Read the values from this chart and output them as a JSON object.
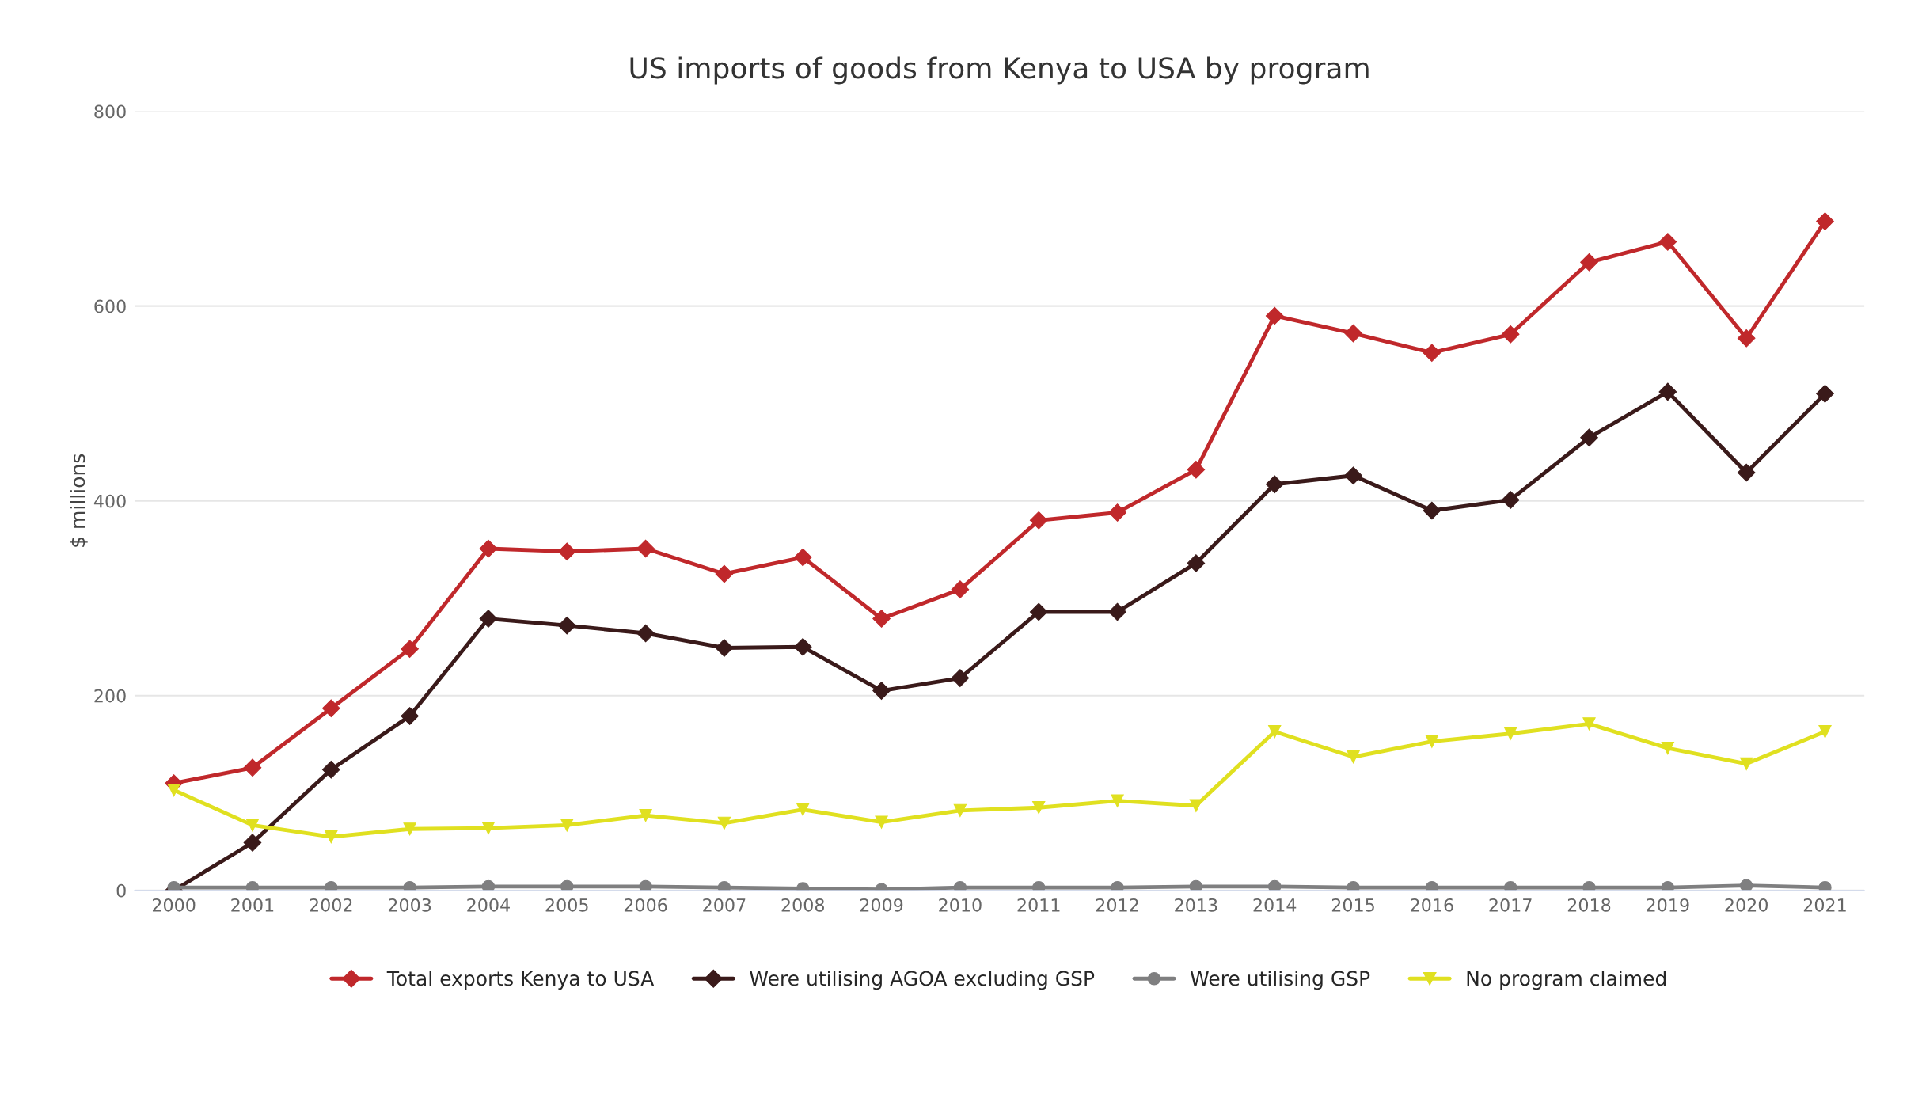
{
  "chart_data": {
    "type": "line",
    "title": "US imports of goods from Kenya to USA by program",
    "ylabel": "$ millions",
    "categories": [
      "2000",
      "2001",
      "2002",
      "2003",
      "2004",
      "2005",
      "2006",
      "2007",
      "2008",
      "2009",
      "2010",
      "2011",
      "2012",
      "2013",
      "2014",
      "2015",
      "2016",
      "2017",
      "2018",
      "2019",
      "2020",
      "2021"
    ],
    "series": [
      {
        "name": "Total exports Kenya to USA",
        "color": "#c0282b",
        "marker": "diamond",
        "values": [
          110,
          126,
          187,
          248,
          351,
          348,
          351,
          325,
          342,
          279,
          309,
          380,
          388,
          432,
          590,
          572,
          552,
          571,
          645,
          666,
          567,
          687
        ]
      },
      {
        "name": "Were utilising AGOA excluding GSP",
        "color": "#3a1a1a",
        "marker": "diamond",
        "values": [
          0,
          49,
          124,
          179,
          279,
          272,
          264,
          249,
          250,
          205,
          218,
          286,
          286,
          336,
          417,
          426,
          390,
          401,
          465,
          512,
          429,
          510
        ]
      },
      {
        "name": "Were utilising GSP",
        "color": "#7f7f80",
        "marker": "circle",
        "values": [
          3,
          3,
          3,
          3,
          4,
          4,
          4,
          3,
          2,
          1,
          3,
          3,
          3,
          4,
          4,
          3,
          3,
          3,
          3,
          3,
          5,
          3
        ]
      },
      {
        "name": "No program claimed",
        "color": "#e0e020",
        "marker": "triangle",
        "values": [
          103,
          67,
          55,
          63,
          64,
          67,
          77,
          69,
          83,
          70,
          82,
          85,
          92,
          87,
          163,
          137,
          153,
          161,
          171,
          146,
          130,
          163
        ]
      }
    ],
    "ylim": [
      0,
      800
    ],
    "yticks": [
      0,
      200,
      400,
      600,
      800
    ],
    "grid": "y",
    "legend": "bottom",
    "line_style": "solid"
  }
}
